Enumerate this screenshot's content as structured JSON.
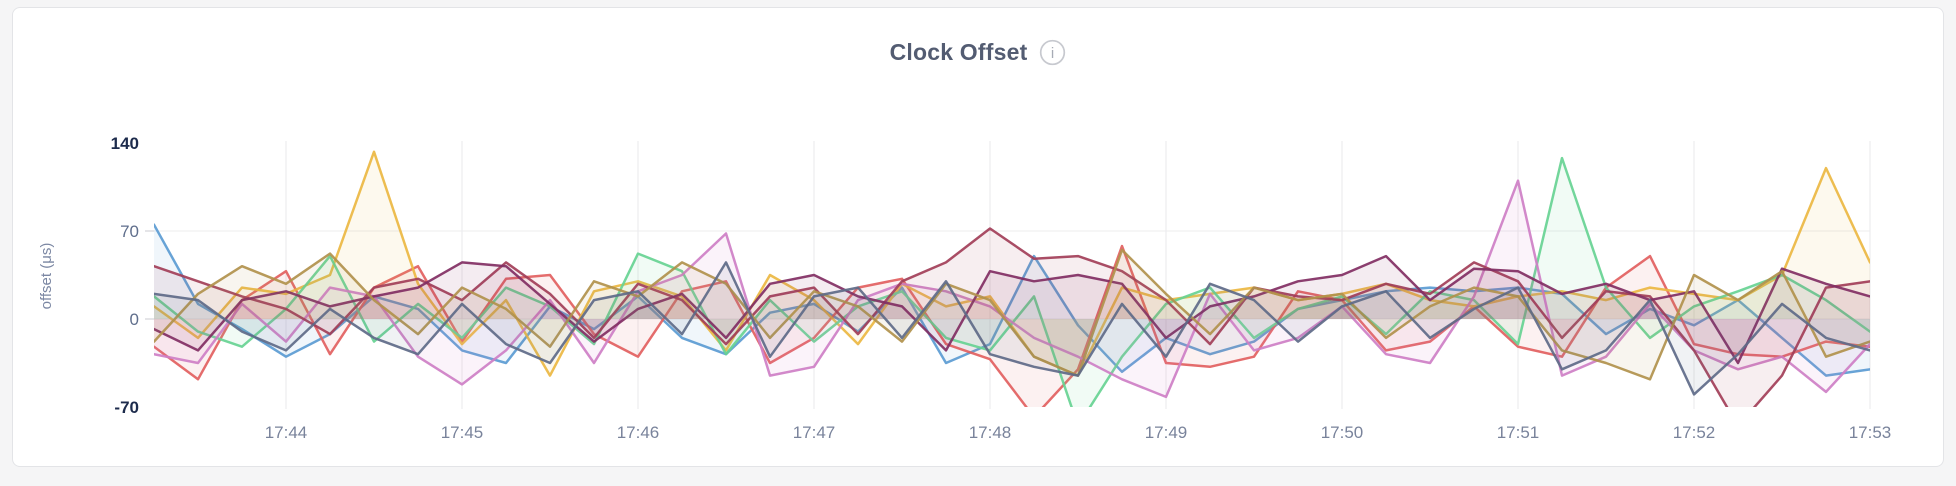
{
  "header": {
    "title": "Clock Offset",
    "info_glyph": "i"
  },
  "card": {
    "background": "#ffffff",
    "border_color": "#e3e4e7",
    "page_background": "#f5f5f6"
  },
  "chart_data": {
    "type": "line",
    "title": "Clock Offset",
    "xlabel": "",
    "ylabel": "offset (μs)",
    "ylim": [
      -70,
      140
    ],
    "y_ticks": [
      140,
      70,
      0,
      -70
    ],
    "y_gridlines": [
      70,
      0
    ],
    "x_ticks": [
      "17:44",
      "17:45",
      "17:46",
      "17:47",
      "17:48",
      "17:49",
      "17:50",
      "17:51",
      "17:52",
      "17:53"
    ],
    "x_range": [
      "17:43:15",
      "17:53:00"
    ],
    "x_step_seconds": 15,
    "points_per_series": 40,
    "x_tick_data_indices": [
      3,
      7,
      11,
      15,
      19,
      23,
      27,
      31,
      35,
      39
    ],
    "grid": true,
    "legend": false,
    "fill_opacity": 0.09,
    "line_width": 2.5,
    "series": [
      {
        "name": "blue",
        "color": "#5B9BD3",
        "values": [
          75,
          12,
          -8,
          -30,
          -12,
          18,
          8,
          -25,
          -35,
          10,
          -8,
          18,
          -15,
          -28,
          5,
          12,
          -10,
          25,
          -35,
          -20,
          50,
          -5,
          -42,
          -15,
          -28,
          -18,
          8,
          15,
          22,
          25,
          22,
          25,
          20,
          -12,
          8,
          -5,
          15,
          -15,
          -45,
          -40
        ]
      },
      {
        "name": "red",
        "color": "#E2605F",
        "values": [
          -22,
          -48,
          15,
          38,
          -28,
          25,
          42,
          -18,
          32,
          35,
          -12,
          -30,
          22,
          30,
          -35,
          -15,
          25,
          32,
          -20,
          -32,
          -78,
          -40,
          58,
          -35,
          -38,
          -30,
          22,
          15,
          -25,
          -18,
          10,
          -22,
          -30,
          25,
          50,
          -20,
          -28,
          -30,
          -18,
          -22
        ]
      },
      {
        "name": "gold",
        "color": "#EBB742",
        "values": [
          10,
          -15,
          25,
          20,
          35,
          133,
          28,
          -20,
          15,
          -45,
          22,
          30,
          18,
          -25,
          35,
          15,
          -20,
          28,
          10,
          18,
          -30,
          -45,
          25,
          15,
          20,
          25,
          15,
          20,
          28,
          15,
          10,
          18,
          22,
          15,
          25,
          20,
          15,
          35,
          120,
          45
        ]
      },
      {
        "name": "green",
        "color": "#67D392",
        "values": [
          18,
          -10,
          -22,
          8,
          50,
          -18,
          12,
          -15,
          25,
          10,
          -20,
          52,
          38,
          -28,
          15,
          -18,
          10,
          22,
          -15,
          -25,
          18,
          -85,
          -30,
          12,
          25,
          -15,
          8,
          18,
          -12,
          22,
          15,
          -20,
          128,
          25,
          -15,
          10,
          22,
          35,
          15,
          -10
        ]
      },
      {
        "name": "orchid",
        "color": "#CE7FC5",
        "values": [
          -28,
          -35,
          12,
          -18,
          25,
          18,
          -30,
          -52,
          -25,
          15,
          -35,
          22,
          35,
          68,
          -45,
          -38,
          15,
          28,
          22,
          10,
          -15,
          -30,
          -48,
          -62,
          20,
          -25,
          -15,
          10,
          -28,
          -35,
          18,
          110,
          -45,
          -30,
          12,
          -25,
          -40,
          -30,
          -58,
          -20
        ]
      },
      {
        "name": "maroon",
        "color": "#A23E58",
        "values": [
          42,
          30,
          18,
          8,
          -12,
          25,
          32,
          15,
          45,
          20,
          -15,
          28,
          15,
          -20,
          18,
          25,
          -12,
          30,
          45,
          72,
          48,
          50,
          38,
          15,
          -20,
          25,
          18,
          15,
          28,
          20,
          45,
          30,
          -15,
          22,
          18,
          -25,
          -85,
          -45,
          25,
          30
        ]
      },
      {
        "name": "plum",
        "color": "#812E63",
        "values": [
          -8,
          -25,
          15,
          22,
          10,
          18,
          25,
          45,
          42,
          12,
          -18,
          8,
          20,
          -15,
          28,
          35,
          18,
          10,
          -25,
          38,
          30,
          35,
          28,
          -15,
          10,
          18,
          30,
          35,
          50,
          15,
          40,
          38,
          20,
          28,
          15,
          22,
          -35,
          40,
          28,
          18
        ]
      },
      {
        "name": "khaki",
        "color": "#B1914C",
        "values": [
          -18,
          20,
          42,
          28,
          52,
          15,
          -12,
          25,
          8,
          -22,
          30,
          18,
          45,
          28,
          -15,
          22,
          10,
          -18,
          28,
          15,
          -30,
          -45,
          55,
          20,
          -12,
          25,
          15,
          20,
          -15,
          10,
          25,
          18,
          -25,
          -35,
          -48,
          35,
          15,
          38,
          -30,
          -18
        ]
      },
      {
        "name": "slate",
        "color": "#5E6A88",
        "values": [
          20,
          15,
          -10,
          -25,
          8,
          -15,
          -28,
          12,
          -20,
          -35,
          15,
          22,
          -12,
          45,
          -30,
          18,
          25,
          -15,
          30,
          -28,
          -38,
          -45,
          12,
          -30,
          28,
          15,
          -18,
          10,
          22,
          -15,
          8,
          25,
          -40,
          -25,
          15,
          -60,
          -28,
          12,
          -15,
          -25
        ]
      }
    ]
  }
}
